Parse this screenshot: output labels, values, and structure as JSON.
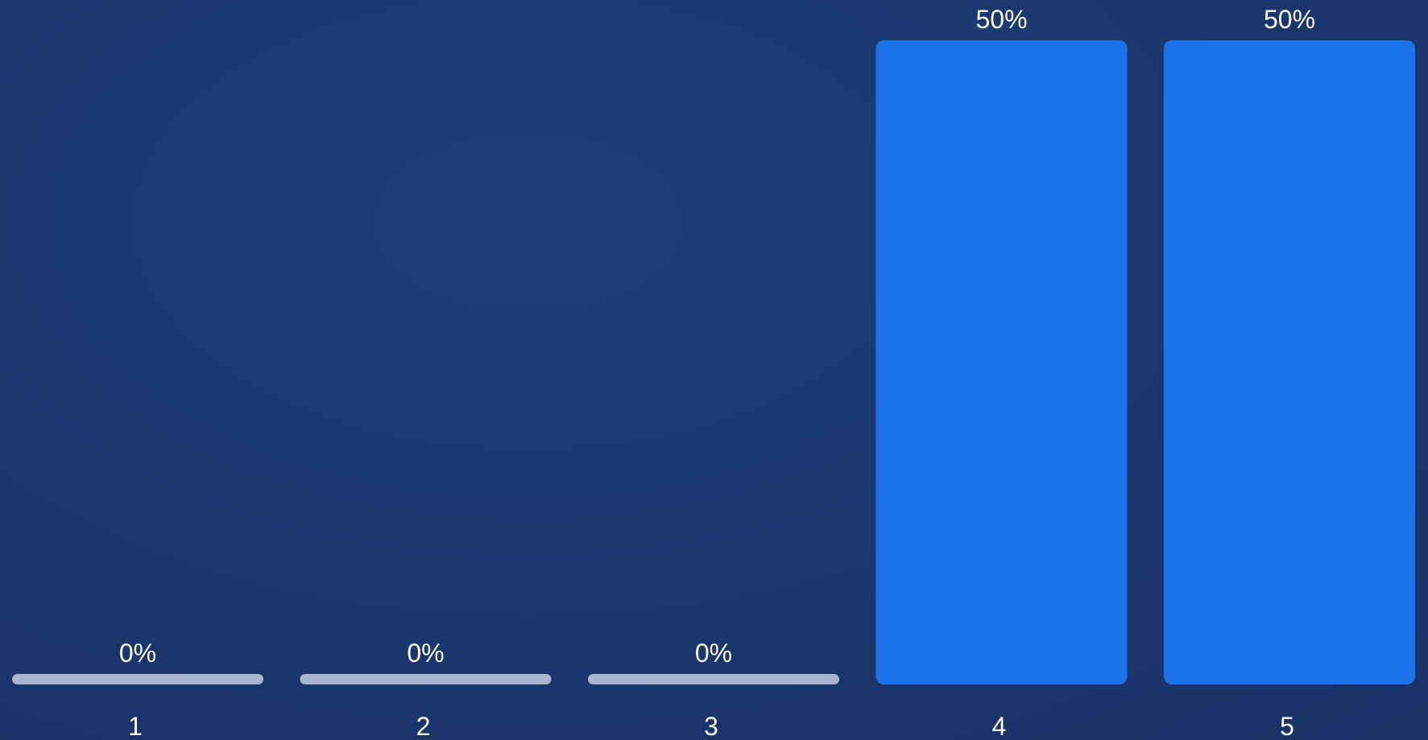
{
  "chart_data": {
    "type": "bar",
    "categories": [
      "1",
      "2",
      "3",
      "4",
      "5"
    ],
    "values": [
      0,
      0,
      0,
      50,
      50
    ],
    "value_labels": [
      "0%",
      "0%",
      "0%",
      "50%",
      "50%"
    ],
    "ylim": [
      0,
      50
    ],
    "title": "",
    "xlabel": "",
    "ylabel": "",
    "grid": false,
    "legend": "none"
  },
  "colors": {
    "bar": "#1b74e8",
    "empty_bar": "#a9b6d2",
    "text": "#ffffff",
    "background": "#1b356a"
  }
}
